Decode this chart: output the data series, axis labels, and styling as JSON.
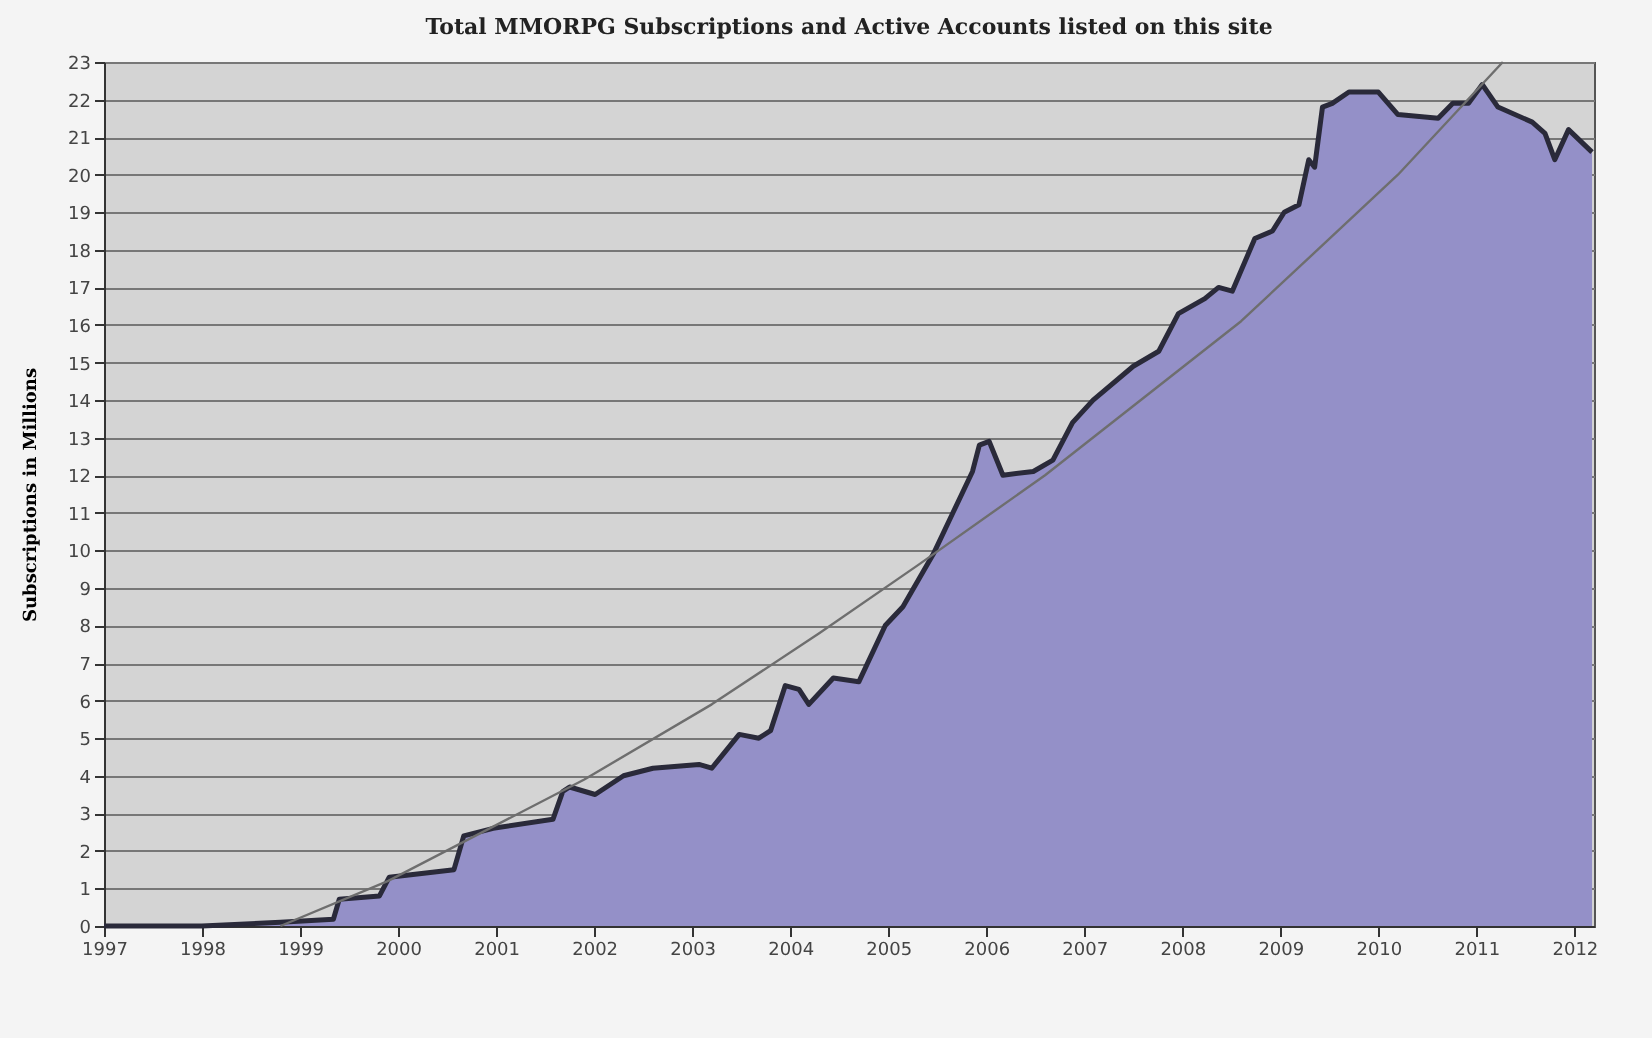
{
  "chart_data": {
    "type": "area",
    "title": "Total MMORPG Subscriptions and Active Accounts listed on this site",
    "ylabel": "Subscriptions in Millions",
    "xlim": [
      1997,
      2012.2
    ],
    "xticks": [
      1997,
      1998,
      1999,
      2000,
      2001,
      2002,
      2003,
      2004,
      2005,
      2006,
      2007,
      2008,
      2009,
      2010,
      2011,
      2012
    ],
    "ylim": [
      0,
      23
    ],
    "yticks": [
      0,
      1,
      2,
      3,
      4,
      5,
      6,
      7,
      8,
      9,
      10,
      11,
      12,
      13,
      14,
      15,
      16,
      17,
      18,
      19,
      20,
      21,
      22,
      23
    ],
    "grid": "y",
    "series": [
      {
        "type": "area",
        "color": "#9490c8",
        "x": [
          1997,
          1998,
          1998.8,
          1999.34,
          1999.4,
          1999.81,
          1999.91,
          2000.57,
          2000.67,
          2000.97,
          2001.58,
          2001.68,
          2001.75,
          2002.01,
          2002.3,
          2002.6,
          2003.07,
          2003.2,
          2003.48,
          2003.68,
          2003.8,
          2003.95,
          2004.09,
          2004.19,
          2004.44,
          2004.7,
          2004.97,
          2005.15,
          2005.46,
          2005.66,
          2005.86,
          2005.93,
          2006.03,
          2006.17,
          2006.48,
          2006.68,
          2006.88,
          2007.09,
          2007.5,
          2007.76,
          2007.96,
          2008.23,
          2008.37,
          2008.51,
          2008.74,
          2008.92,
          2009.04,
          2009.19,
          2009.29,
          2009.35,
          2009.43,
          2009.53,
          2009.7,
          2010.0,
          2010.1,
          2010.2,
          2010.61,
          2010.76,
          2010.92,
          2011.06,
          2011.22,
          2011.57,
          2011.7,
          2011.8,
          2011.94,
          2012.18
        ],
        "values": [
          0,
          0,
          0.1,
          0.18,
          0.71,
          0.8,
          1.3,
          1.5,
          2.4,
          2.6,
          2.84,
          3.58,
          3.7,
          3.5,
          4.0,
          4.2,
          4.3,
          4.2,
          5.1,
          5.0,
          5.2,
          6.4,
          6.3,
          5.9,
          6.6,
          6.5,
          8.0,
          8.5,
          9.9,
          11.0,
          12.1,
          12.8,
          12.9,
          12.0,
          12.1,
          12.4,
          13.4,
          14.0,
          14.9,
          15.3,
          16.3,
          16.7,
          17.0,
          16.9,
          18.3,
          18.5,
          19.0,
          19.2,
          20.4,
          20.2,
          21.8,
          21.9,
          22.2,
          22.2,
          21.9,
          21.6,
          21.5,
          21.9,
          21.9,
          22.4,
          21.8,
          21.4,
          21.1,
          20.4,
          21.2,
          20.6
        ]
      },
      {
        "type": "line",
        "color": "#6e6e6e",
        "x": [
          1998.8,
          1999.9,
          2001.9,
          2003.2,
          2004.3,
          2005.3,
          2006.6,
          2008.6,
          2010.2,
          2011.27
        ],
        "values": [
          0,
          1.2,
          3.9,
          5.9,
          7.8,
          9.6,
          12.0,
          16.1,
          20.0,
          23
        ]
      }
    ]
  }
}
